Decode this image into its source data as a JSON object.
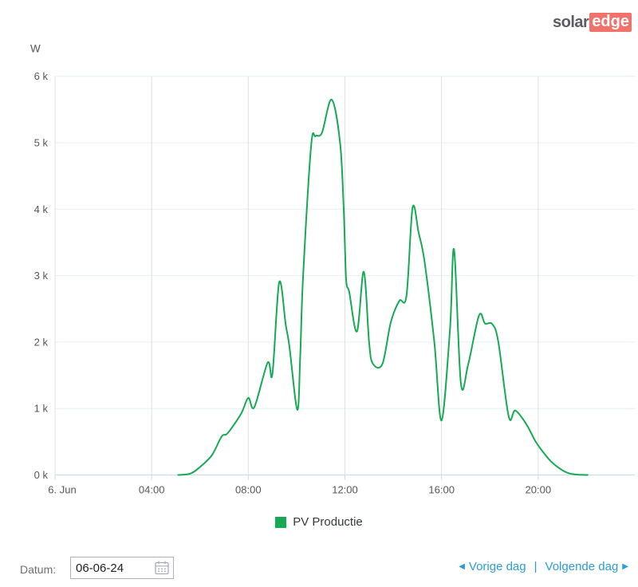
{
  "logo": {
    "part1": "solar",
    "part2": "edge",
    "red": "#f2716b",
    "gray": "#595d61"
  },
  "chart": {
    "y_axis_title": "W",
    "y_ticks": [
      "6 k",
      "5 k",
      "4 k",
      "3 k",
      "2 k",
      "1 k",
      "0 k"
    ],
    "x_ticks": [
      "6. Jun",
      "04:00",
      "08:00",
      "12:00",
      "16:00",
      "20:00"
    ],
    "colors": {
      "h_grid": "#e3eefa",
      "v_grid": "#e0e0e0",
      "baseline": "#c9dcf0",
      "tick": "#ccd6eb",
      "axis_text": "#53575c"
    }
  },
  "chart_data": {
    "type": "line",
    "title": "",
    "xlabel": "",
    "ylabel": "W",
    "x_unit": "hour_of_day",
    "xlim": [
      0,
      24
    ],
    "ylim": [
      0,
      6000
    ],
    "x_gridline_hours": [
      0,
      4,
      8,
      12,
      16,
      20
    ],
    "y_gridline_watts": [
      0,
      1000,
      2000,
      3000,
      4000,
      5000,
      6000
    ],
    "grid": true,
    "legend_position": "bottom",
    "series": [
      {
        "name": "PV Productie",
        "color": "#15aa53",
        "points_hour_watt": [
          [
            5.1,
            0
          ],
          [
            5.6,
            20
          ],
          [
            6.0,
            120
          ],
          [
            6.5,
            300
          ],
          [
            6.9,
            580
          ],
          [
            7.15,
            630
          ],
          [
            7.7,
            920
          ],
          [
            8.0,
            1160
          ],
          [
            8.25,
            1020
          ],
          [
            8.8,
            1690
          ],
          [
            9.0,
            1520
          ],
          [
            9.28,
            2900
          ],
          [
            9.55,
            2260
          ],
          [
            9.7,
            1940
          ],
          [
            10.03,
            980
          ],
          [
            10.15,
            1800
          ],
          [
            10.27,
            3000
          ],
          [
            10.6,
            4950
          ],
          [
            10.78,
            5100
          ],
          [
            11.05,
            5150
          ],
          [
            11.45,
            5650
          ],
          [
            11.8,
            5000
          ],
          [
            11.95,
            4000
          ],
          [
            12.05,
            2950
          ],
          [
            12.18,
            2750
          ],
          [
            12.5,
            2160
          ],
          [
            12.78,
            3060
          ],
          [
            13.0,
            2000
          ],
          [
            13.15,
            1680
          ],
          [
            13.55,
            1670
          ],
          [
            13.9,
            2300
          ],
          [
            14.25,
            2620
          ],
          [
            14.55,
            2700
          ],
          [
            14.8,
            4020
          ],
          [
            15.05,
            3650
          ],
          [
            15.3,
            3200
          ],
          [
            15.7,
            2000
          ],
          [
            16.0,
            820
          ],
          [
            16.35,
            2200
          ],
          [
            16.52,
            3390
          ],
          [
            16.8,
            1380
          ],
          [
            17.1,
            1660
          ],
          [
            17.55,
            2400
          ],
          [
            17.8,
            2280
          ],
          [
            18.1,
            2270
          ],
          [
            18.35,
            2000
          ],
          [
            18.78,
            880
          ],
          [
            19.05,
            970
          ],
          [
            19.5,
            770
          ],
          [
            19.9,
            500
          ],
          [
            20.3,
            300
          ],
          [
            20.6,
            180
          ],
          [
            21.1,
            50
          ],
          [
            21.5,
            10
          ],
          [
            22.05,
            0
          ]
        ]
      }
    ]
  },
  "legend": {
    "label": "PV Productie"
  },
  "footer": {
    "date_label": "Datum:",
    "date_value": "06-06-24",
    "prev_arrow": "◀",
    "prev_label": "Vorige dag",
    "separator": "|",
    "next_label": "Volgende dag",
    "next_arrow": "▶",
    "link_color": "#2b9cd8"
  }
}
